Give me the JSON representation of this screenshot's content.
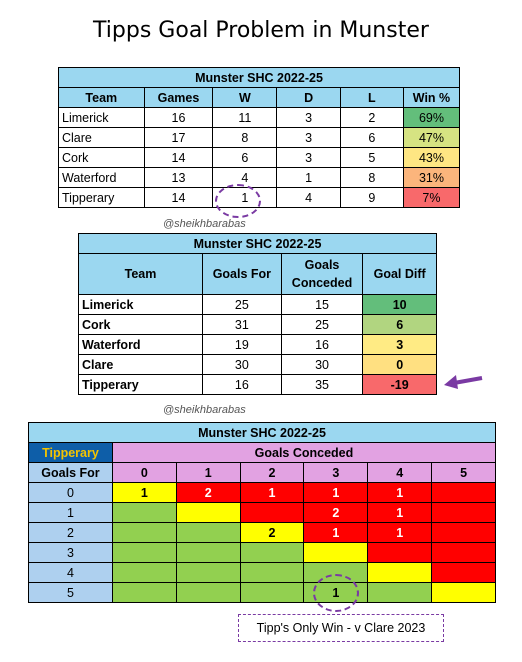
{
  "title": "Tipps Goal Problem in Munster",
  "watermark": "@sheikhbarabas",
  "colors": {
    "header_blue": "#9bd7f0",
    "green_dark": "#63be7b",
    "green_light": "#b9d782",
    "yellow": "#ffeb84",
    "orange": "#f8b07a",
    "red": "#f8696b",
    "purple": "#7a3aa3",
    "cell_red": "#ff0000",
    "cell_green": "#92d050",
    "cell_yellow": "#ffff00"
  },
  "chart_data": [
    {
      "type": "table",
      "title": "Munster SHC 2022-25",
      "columns": [
        "Team",
        "Games",
        "W",
        "D",
        "L",
        "Win %"
      ],
      "rows": [
        {
          "team": "Limerick",
          "games": "16",
          "w": "11",
          "d": "3",
          "l": "2",
          "winpct": "69%",
          "color": "#63be7b"
        },
        {
          "team": "Clare",
          "games": "17",
          "w": "8",
          "d": "3",
          "l": "6",
          "winpct": "47%",
          "color": "#d6e382"
        },
        {
          "team": "Cork",
          "games": "14",
          "w": "6",
          "d": "3",
          "l": "5",
          "winpct": "43%",
          "color": "#fee683"
        },
        {
          "team": "Waterford",
          "games": "13",
          "w": "4",
          "d": "1",
          "l": "8",
          "winpct": "31%",
          "color": "#fbb57c"
        },
        {
          "team": "Tipperary",
          "games": "14",
          "w": "1",
          "d": "4",
          "l": "9",
          "winpct": "7%",
          "color": "#f8696b"
        }
      ]
    },
    {
      "type": "table",
      "title": "Munster SHC 2022-25",
      "columns": [
        "Team",
        "Goals For",
        "Goals Conceded",
        "Goal Diff"
      ],
      "rows": [
        {
          "team": "Limerick",
          "gf": "25",
          "gc": "15",
          "gd": "10",
          "color": "#63be7b"
        },
        {
          "team": "Cork",
          "gf": "31",
          "gc": "25",
          "gd": "6",
          "color": "#b1d580"
        },
        {
          "team": "Waterford",
          "gf": "19",
          "gc": "16",
          "gd": "3",
          "color": "#ffeb84"
        },
        {
          "team": "Clare",
          "gf": "30",
          "gc": "30",
          "gd": "0",
          "color": "#ffe081"
        },
        {
          "team": "Tipperary",
          "gf": "16",
          "gc": "35",
          "gd": "-19",
          "color": "#f8696b"
        }
      ]
    },
    {
      "type": "heatmap",
      "title": "Munster SHC 2022-25",
      "corner_label": "Tipperary",
      "x_header": "Goals Conceded",
      "y_header": "Goals For",
      "x": [
        "0",
        "1",
        "2",
        "3",
        "4",
        "5"
      ],
      "y": [
        "0",
        "1",
        "2",
        "3",
        "4",
        "5"
      ],
      "cells": [
        [
          {
            "v": "1",
            "c": "Y"
          },
          {
            "v": "2",
            "c": "R"
          },
          {
            "v": "1",
            "c": "R"
          },
          {
            "v": "1",
            "c": "R"
          },
          {
            "v": "1",
            "c": "R"
          },
          {
            "v": "",
            "c": "R"
          }
        ],
        [
          {
            "v": "",
            "c": "G"
          },
          {
            "v": "",
            "c": "Y"
          },
          {
            "v": "",
            "c": "R"
          },
          {
            "v": "2",
            "c": "R"
          },
          {
            "v": "1",
            "c": "R"
          },
          {
            "v": "",
            "c": "R"
          }
        ],
        [
          {
            "v": "",
            "c": "G"
          },
          {
            "v": "",
            "c": "G"
          },
          {
            "v": "2",
            "c": "Y"
          },
          {
            "v": "1",
            "c": "R"
          },
          {
            "v": "1",
            "c": "R"
          },
          {
            "v": "",
            "c": "R"
          }
        ],
        [
          {
            "v": "",
            "c": "G"
          },
          {
            "v": "",
            "c": "G"
          },
          {
            "v": "",
            "c": "G"
          },
          {
            "v": "",
            "c": "Y"
          },
          {
            "v": "",
            "c": "R"
          },
          {
            "v": "",
            "c": "R"
          }
        ],
        [
          {
            "v": "",
            "c": "G"
          },
          {
            "v": "",
            "c": "G"
          },
          {
            "v": "",
            "c": "G"
          },
          {
            "v": "",
            "c": "G"
          },
          {
            "v": "",
            "c": "Y"
          },
          {
            "v": "",
            "c": "R"
          }
        ],
        [
          {
            "v": "",
            "c": "G"
          },
          {
            "v": "",
            "c": "G"
          },
          {
            "v": "",
            "c": "G"
          },
          {
            "v": "1",
            "c": "G"
          },
          {
            "v": "",
            "c": "G"
          },
          {
            "v": "",
            "c": "Y"
          }
        ]
      ],
      "annotation": "Tipp's Only Win - v Clare 2023"
    }
  ]
}
